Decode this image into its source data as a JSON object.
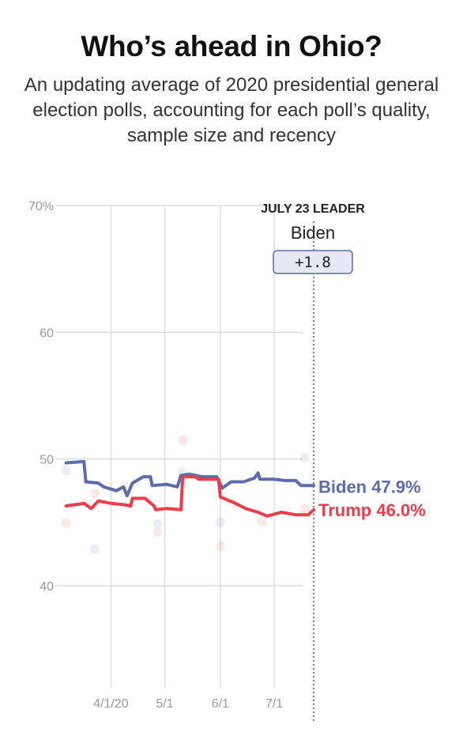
{
  "header": {
    "title": "Who’s ahead in Ohio?",
    "subtitle": "An updating average of 2020 presidential general election polls, accounting for each poll’s quality, sample size and recency"
  },
  "leader_box": {
    "heading": "JULY 23 LEADER",
    "name": "Biden",
    "margin": "+1.8"
  },
  "colors": {
    "biden": "#5b6cad",
    "trump": "#ee3c48",
    "grid": "#dddddd",
    "leader_box_fill": "#e6e9f4",
    "leader_box_stroke": "#5b6cad"
  },
  "chart_data": {
    "type": "line",
    "x_axis": {
      "range": [
        "2020-03-01",
        "2020-07-23"
      ],
      "ticks": [
        {
          "date": "2020-04-01",
          "label": "4/1/20"
        },
        {
          "date": "2020-05-01",
          "label": "5/1"
        },
        {
          "date": "2020-06-01",
          "label": "6/1"
        },
        {
          "date": "2020-07-01",
          "label": "7/1"
        }
      ]
    },
    "y_axis": {
      "range": [
        40,
        70
      ],
      "ticks": [
        {
          "value": 70,
          "label": "70%"
        },
        {
          "value": 60,
          "label": "60"
        },
        {
          "value": 50,
          "label": "50"
        },
        {
          "value": 40,
          "label": "40"
        }
      ]
    },
    "grid": true,
    "current_date": "2020-07-23",
    "series": [
      {
        "name": "Biden",
        "end_label": "Biden 47.9%",
        "points": [
          [
            "2020-03-07",
            49.7
          ],
          [
            "2020-03-17",
            49.8
          ],
          [
            "2020-03-18",
            48.2
          ],
          [
            "2020-03-25",
            48.1
          ],
          [
            "2020-03-28",
            47.8
          ],
          [
            "2020-04-04",
            47.5
          ],
          [
            "2020-04-08",
            47.8
          ],
          [
            "2020-04-10",
            47.1
          ],
          [
            "2020-04-13",
            48.1
          ],
          [
            "2020-04-19",
            48.6
          ],
          [
            "2020-04-23",
            48.6
          ],
          [
            "2020-04-24",
            47.9
          ],
          [
            "2020-05-02",
            48.0
          ],
          [
            "2020-05-08",
            47.8
          ],
          [
            "2020-05-10",
            48.7
          ],
          [
            "2020-05-15",
            48.8
          ],
          [
            "2020-05-22",
            48.6
          ],
          [
            "2020-05-25",
            48.6
          ],
          [
            "2020-05-30",
            48.6
          ],
          [
            "2020-06-02",
            47.7
          ],
          [
            "2020-06-07",
            48.2
          ],
          [
            "2020-06-14",
            48.2
          ],
          [
            "2020-06-20",
            48.5
          ],
          [
            "2020-06-22",
            48.9
          ],
          [
            "2020-06-23",
            48.4
          ],
          [
            "2020-07-01",
            48.4
          ],
          [
            "2020-07-07",
            48.3
          ],
          [
            "2020-07-13",
            48.3
          ],
          [
            "2020-07-16",
            47.9
          ],
          [
            "2020-07-23",
            47.9
          ]
        ]
      },
      {
        "name": "Trump",
        "end_label": "Trump 46.0%",
        "points": [
          [
            "2020-03-07",
            46.3
          ],
          [
            "2020-03-17",
            46.5
          ],
          [
            "2020-03-21",
            46.1
          ],
          [
            "2020-03-25",
            46.7
          ],
          [
            "2020-04-01",
            46.5
          ],
          [
            "2020-04-08",
            46.4
          ],
          [
            "2020-04-12",
            46.3
          ],
          [
            "2020-04-13",
            46.9
          ],
          [
            "2020-04-20",
            46.9
          ],
          [
            "2020-04-25",
            46.3
          ],
          [
            "2020-04-26",
            46.0
          ],
          [
            "2020-05-02",
            46.1
          ],
          [
            "2020-05-10",
            46.0
          ],
          [
            "2020-05-11",
            48.6
          ],
          [
            "2020-05-18",
            48.6
          ],
          [
            "2020-05-20",
            48.4
          ],
          [
            "2020-05-31",
            48.4
          ],
          [
            "2020-06-01",
            47.0
          ],
          [
            "2020-06-08",
            46.6
          ],
          [
            "2020-06-15",
            46.1
          ],
          [
            "2020-06-22",
            45.8
          ],
          [
            "2020-06-27",
            45.5
          ],
          [
            "2020-07-05",
            45.8
          ],
          [
            "2020-07-13",
            45.6
          ],
          [
            "2020-07-20",
            45.6
          ],
          [
            "2020-07-23",
            46.0
          ]
        ]
      }
    ],
    "polls": [
      {
        "series": "Biden",
        "date": "2020-03-07",
        "value": 49.1
      },
      {
        "series": "Biden",
        "date": "2020-03-23",
        "value": 42.9
      },
      {
        "series": "Biden",
        "date": "2020-04-27",
        "value": 44.9
      },
      {
        "series": "Biden",
        "date": "2020-05-11",
        "value": 48.9
      },
      {
        "series": "Biden",
        "date": "2020-06-01",
        "value": 45.0
      },
      {
        "series": "Biden",
        "date": "2020-07-18",
        "value": 50.1
      },
      {
        "series": "Trump",
        "date": "2020-03-07",
        "value": 45.0
      },
      {
        "series": "Trump",
        "date": "2020-03-23",
        "value": 47.3
      },
      {
        "series": "Trump",
        "date": "2020-04-27",
        "value": 44.2
      },
      {
        "series": "Trump",
        "date": "2020-05-11",
        "value": 51.5
      },
      {
        "series": "Trump",
        "date": "2020-06-01",
        "value": 43.1
      },
      {
        "series": "Trump",
        "date": "2020-06-24",
        "value": 45.1
      },
      {
        "series": "Trump",
        "date": "2020-07-18",
        "value": 46.1
      }
    ]
  }
}
